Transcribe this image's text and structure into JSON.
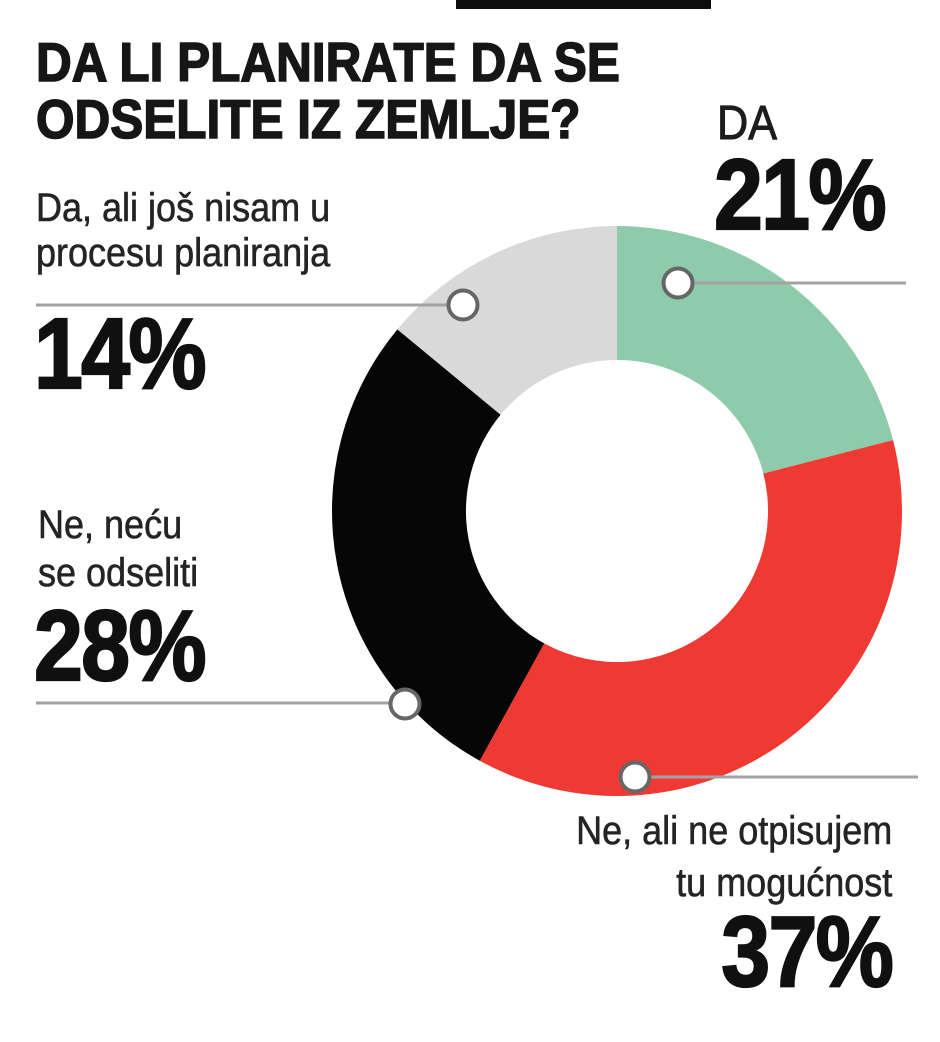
{
  "title": {
    "line1": "DA LI PLANIRATE DA SE",
    "line2": "ODSELITE IZ ZEMLJE?"
  },
  "annotations": {
    "yes": {
      "label": "DA",
      "pct": "21%"
    },
    "maybe": {
      "line1": "Ne, ali ne otpisujem",
      "line2": "tu mogućnost",
      "pct": "37%"
    },
    "no": {
      "line1": "Ne, neću",
      "line2": "se odseliti",
      "pct": "28%"
    },
    "planning": {
      "line1": "Da, ali još nisam u",
      "line2": "procesu planiranja",
      "pct": "14%"
    }
  },
  "chart_data": {
    "type": "pie",
    "title": "DA LI PLANIRATE DA SE ODSELITE IZ ZEMLJE?",
    "donut": true,
    "inner_radius_ratio": 0.53,
    "start_angle_deg": 0,
    "direction": "clockwise",
    "legend_position": "around-chart",
    "segments": [
      {
        "label": "DA",
        "value": 21,
        "color": "#8ecbaa"
      },
      {
        "label": "Ne, ali ne otpisujem tu mogućnost",
        "value": 37,
        "color": "#ee3a33"
      },
      {
        "label": "Ne, neću se odseliti",
        "value": 28,
        "color": "#060606"
      },
      {
        "label": "Da, ali još nisam u procesu planiranja",
        "value": 14,
        "color": "#d9d9d9"
      }
    ],
    "colors": {
      "leader_line": "#a3a3a3",
      "marker_fill": "#ffffff",
      "marker_stroke": "#666666",
      "text": "#161616"
    }
  }
}
